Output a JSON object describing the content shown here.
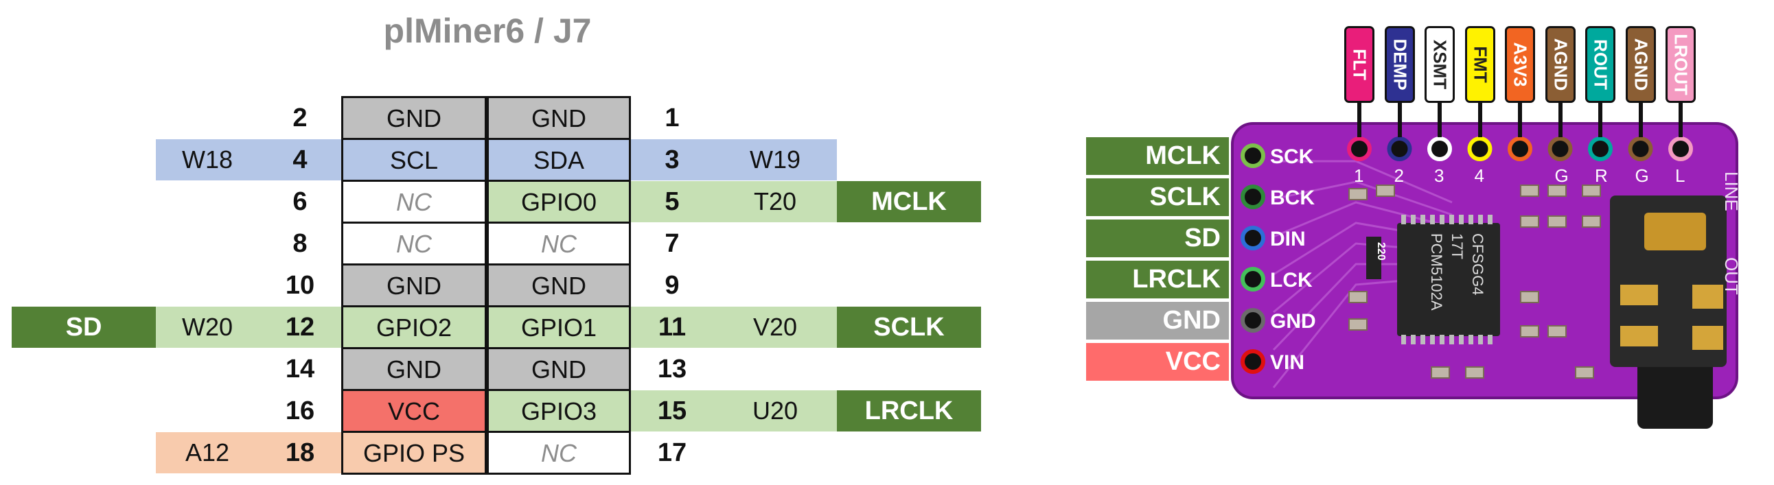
{
  "title": "plMiner6 / J7",
  "colors": {
    "gnd": "#bfbfbf",
    "i2c": "#b4c6e7",
    "gpio": "#c6e0b4",
    "nc": "#ffffff",
    "vcc_cell": "#f4716a",
    "ps": "#f8cbad",
    "signal": "#538135",
    "board_gnd": "#a6a6a6",
    "board_vcc": "#ff6b6b",
    "pcb": "#9b22b8"
  },
  "rows": [
    {
      "left_signal": "",
      "left_pkg": "",
      "left_pin": "2",
      "left_func": "GND",
      "right_func": "GND",
      "right_pin": "1",
      "right_pkg": "",
      "right_signal": ""
    },
    {
      "left_signal": "",
      "left_pkg": "W18",
      "left_pin": "4",
      "left_func": "SCL",
      "right_func": "SDA",
      "right_pin": "3",
      "right_pkg": "W19",
      "right_signal": ""
    },
    {
      "left_signal": "",
      "left_pkg": "",
      "left_pin": "6",
      "left_func": "NC",
      "right_func": "GPIO0",
      "right_pin": "5",
      "right_pkg": "T20",
      "right_signal": "MCLK"
    },
    {
      "left_signal": "",
      "left_pkg": "",
      "left_pin": "8",
      "left_func": "NC",
      "right_func": "NC",
      "right_pin": "7",
      "right_pkg": "",
      "right_signal": ""
    },
    {
      "left_signal": "",
      "left_pkg": "",
      "left_pin": "10",
      "left_func": "GND",
      "right_func": "GND",
      "right_pin": "9",
      "right_pkg": "",
      "right_signal": ""
    },
    {
      "left_signal": "SD",
      "left_pkg": "W20",
      "left_pin": "12",
      "left_func": "GPIO2",
      "right_func": "GPIO1",
      "right_pin": "11",
      "right_pkg": "V20",
      "right_signal": "SCLK"
    },
    {
      "left_signal": "",
      "left_pkg": "",
      "left_pin": "14",
      "left_func": "GND",
      "right_func": "GND",
      "right_pin": "13",
      "right_pkg": "",
      "right_signal": ""
    },
    {
      "left_signal": "",
      "left_pkg": "",
      "left_pin": "16",
      "left_func": "VCC",
      "right_func": "GPIO3",
      "right_pin": "15",
      "right_pkg": "U20",
      "right_signal": "LRCLK"
    },
    {
      "left_signal": "",
      "left_pkg": "A12",
      "left_pin": "18",
      "left_func": "GPIO PS",
      "right_func": "NC",
      "right_pin": "17",
      "right_pkg": "",
      "right_signal": ""
    }
  ],
  "board": {
    "side_labels": [
      {
        "label": "MCLK",
        "pin": "SCK",
        "color": "#538135",
        "ring": "#7cc04a"
      },
      {
        "label": "SCLK",
        "pin": "BCK",
        "color": "#538135",
        "ring": "#2f8a3a"
      },
      {
        "label": "SD",
        "pin": "DIN",
        "color": "#538135",
        "ring": "#2d6fd6"
      },
      {
        "label": "LRCLK",
        "pin": "LCK",
        "color": "#538135",
        "ring": "#44c05a"
      },
      {
        "label": "GND",
        "pin": "GND",
        "color": "#a6a6a6",
        "ring": "#6b6b6b"
      },
      {
        "label": "VCC",
        "pin": "VIN",
        "color": "#ff6b6b",
        "ring": "#e01010"
      }
    ],
    "top_labels": [
      {
        "label": "FLT",
        "bg": "#e91e7a",
        "text": "#ffffff",
        "ring": "#e91e7a",
        "pad": "1"
      },
      {
        "label": "DEMP",
        "bg": "#2e3192",
        "text": "#ffffff",
        "ring": "#2e3192",
        "pad": "2"
      },
      {
        "label": "XSMT",
        "bg": "#ffffff",
        "text": "#222222",
        "ring": "#ffffff",
        "pad": "3"
      },
      {
        "label": "FMT",
        "bg": "#fff200",
        "text": "#222222",
        "ring": "#fff200",
        "pad": "4"
      },
      {
        "label": "A3V3",
        "bg": "#f26522",
        "text": "#ffffff",
        "ring": "#f26522",
        "pad": ""
      },
      {
        "label": "AGND",
        "bg": "#8b5e34",
        "text": "#ffffff",
        "ring": "#8b5e34",
        "pad": "G"
      },
      {
        "label": "ROUT",
        "bg": "#00a99d",
        "text": "#ffffff",
        "ring": "#00a99d",
        "pad": "R"
      },
      {
        "label": "AGND",
        "bg": "#8b5e34",
        "text": "#ffffff",
        "ring": "#8b5e34",
        "pad": "G"
      },
      {
        "label": "LROUT",
        "bg": "#f49ac1",
        "text": "#ffffff",
        "ring": "#f49ac1",
        "pad": "L"
      }
    ],
    "chip_lines": [
      "PCM5102A",
      "17T",
      "CFSGG4"
    ],
    "resistor_marking": "220",
    "silk_right": [
      "LINE",
      "OUT"
    ]
  }
}
